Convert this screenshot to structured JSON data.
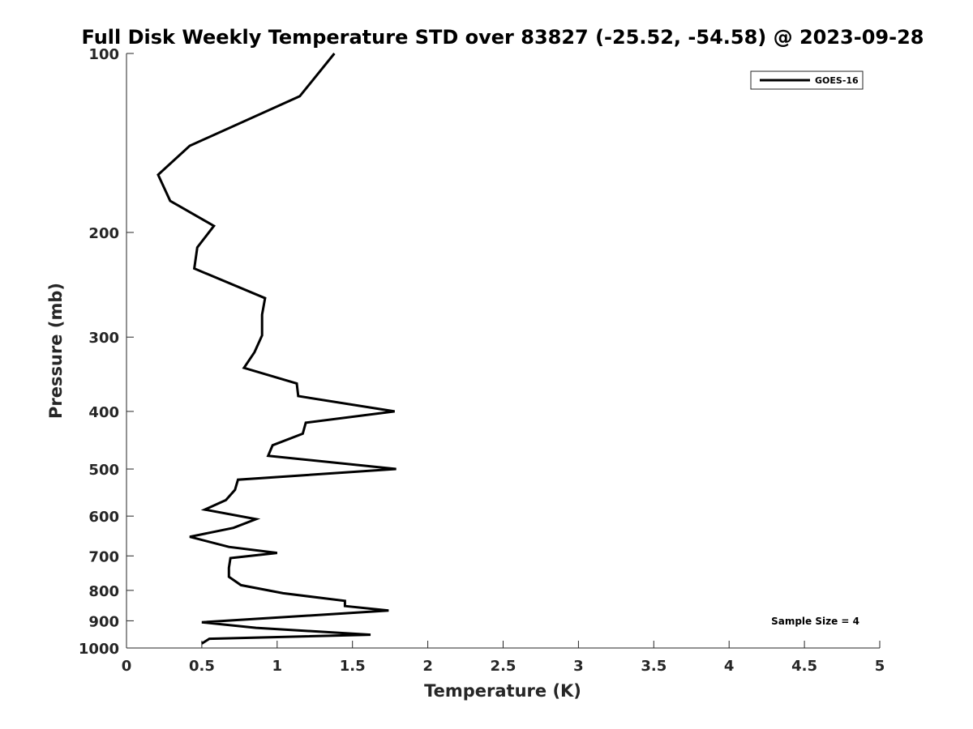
{
  "chart_data": {
    "type": "line",
    "title": "Full Disk Weekly Temperature STD over 83827 (-25.52, -54.58) @ 2023-09-28",
    "xlabel": "Temperature (K)",
    "ylabel": "Pressure (mb)",
    "xlim": [
      0,
      5
    ],
    "ylim": [
      100,
      1000
    ],
    "yscale": "log",
    "yreversed": true,
    "xticks": [
      0,
      0.5,
      1,
      1.5,
      2,
      2.5,
      3,
      3.5,
      4,
      4.5,
      5
    ],
    "xtick_labels": [
      "0",
      "0.5",
      "1",
      "1.5",
      "2",
      "2.5",
      "3",
      "3.5",
      "4",
      "4.5",
      "5"
    ],
    "yticks": [
      100,
      200,
      300,
      400,
      500,
      600,
      700,
      800,
      900,
      1000
    ],
    "ytick_labels": [
      "100",
      "200",
      "300",
      "400",
      "500",
      "600",
      "700",
      "800",
      "900",
      "1000"
    ],
    "grid": false,
    "legend_position": "top-right",
    "series": [
      {
        "name": "GOES-16",
        "color": "#000000",
        "points": [
          [
            1.38,
            100
          ],
          [
            1.15,
            118
          ],
          [
            0.42,
            143
          ],
          [
            0.21,
            160
          ],
          [
            0.29,
            177
          ],
          [
            0.58,
            195
          ],
          [
            0.47,
            212
          ],
          [
            0.45,
            230
          ],
          [
            0.92,
            258
          ],
          [
            0.9,
            275
          ],
          [
            0.9,
            298
          ],
          [
            0.85,
            318
          ],
          [
            0.78,
            338
          ],
          [
            1.13,
            359
          ],
          [
            1.14,
            377
          ],
          [
            1.78,
            400
          ],
          [
            1.19,
            418
          ],
          [
            1.17,
            436
          ],
          [
            0.97,
            456
          ],
          [
            0.94,
            475
          ],
          [
            1.79,
            500
          ],
          [
            0.74,
            521
          ],
          [
            0.72,
            542
          ],
          [
            0.66,
            564
          ],
          [
            0.52,
            585
          ],
          [
            0.86,
            607
          ],
          [
            0.71,
            628
          ],
          [
            0.42,
            650
          ],
          [
            0.68,
            676
          ],
          [
            1.0,
            692
          ],
          [
            0.69,
            706
          ],
          [
            0.68,
            733
          ],
          [
            0.68,
            759
          ],
          [
            0.76,
            784
          ],
          [
            1.04,
            809
          ],
          [
            1.45,
            833
          ],
          [
            1.45,
            850
          ],
          [
            1.74,
            865
          ],
          [
            0.5,
            905
          ],
          [
            0.86,
            925
          ],
          [
            1.62,
            950
          ],
          [
            0.55,
            965
          ],
          [
            0.5,
            983
          ]
        ]
      }
    ],
    "annotation": "Sample Size = 4"
  }
}
